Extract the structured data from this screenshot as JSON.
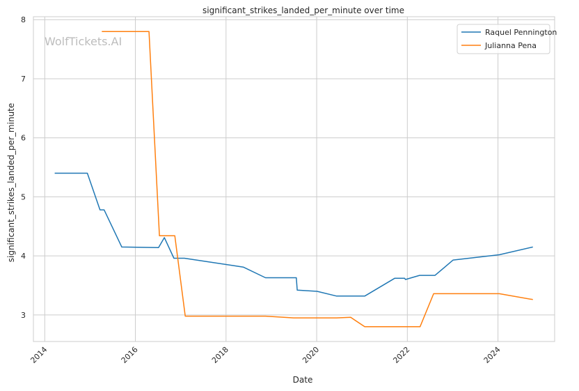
{
  "chart_data": {
    "type": "line",
    "title": "significant_strikes_landed_per_minute over time",
    "xlabel": "Date",
    "ylabel": "significant_strikes_landed_per_minute",
    "watermark": "WolfTickets.AI",
    "x_ticks": [
      "2014",
      "2016",
      "2018",
      "2020",
      "2022",
      "2024"
    ],
    "y_ticks": [
      "3",
      "4",
      "5",
      "6",
      "7",
      "8"
    ],
    "xlim": [
      2013.75,
      2025.25
    ],
    "ylim": [
      2.55,
      8.05
    ],
    "grid": true,
    "legend_position": "top-right",
    "series": [
      {
        "name": "Raquel Pennington",
        "color": "#1f77b4",
        "points": [
          [
            2014.22,
            5.4
          ],
          [
            2014.94,
            5.4
          ],
          [
            2015.22,
            4.78
          ],
          [
            2015.31,
            4.78
          ],
          [
            2015.7,
            4.15
          ],
          [
            2016.51,
            4.14
          ],
          [
            2016.64,
            4.31
          ],
          [
            2016.85,
            3.96
          ],
          [
            2017.08,
            3.96
          ],
          [
            2018.38,
            3.81
          ],
          [
            2018.87,
            3.63
          ],
          [
            2019.55,
            3.63
          ],
          [
            2019.57,
            3.42
          ],
          [
            2020.01,
            3.4
          ],
          [
            2020.44,
            3.32
          ],
          [
            2021.06,
            3.32
          ],
          [
            2021.72,
            3.62
          ],
          [
            2021.94,
            3.62
          ],
          [
            2021.96,
            3.6
          ],
          [
            2022.27,
            3.67
          ],
          [
            2022.61,
            3.67
          ],
          [
            2023.01,
            3.93
          ],
          [
            2024.03,
            4.02
          ],
          [
            2024.77,
            4.15
          ]
        ]
      },
      {
        "name": "Julianna Pena",
        "color": "#ff7f0e",
        "points": [
          [
            2015.26,
            7.8
          ],
          [
            2016.3,
            7.8
          ],
          [
            2016.53,
            4.34
          ],
          [
            2016.87,
            4.34
          ],
          [
            2017.1,
            2.98
          ],
          [
            2018.87,
            2.98
          ],
          [
            2019.49,
            2.95
          ],
          [
            2020.44,
            2.95
          ],
          [
            2020.75,
            2.96
          ],
          [
            2021.06,
            2.8
          ],
          [
            2021.96,
            2.8
          ],
          [
            2022.28,
            2.8
          ],
          [
            2022.58,
            3.36
          ],
          [
            2024.03,
            3.36
          ],
          [
            2024.77,
            3.26
          ]
        ]
      }
    ]
  }
}
